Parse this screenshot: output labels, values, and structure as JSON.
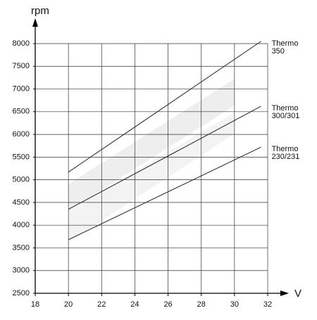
{
  "chart_data": {
    "type": "line",
    "xlabel": "V",
    "ylabel": "rpm",
    "x": [
      20,
      31.6
    ],
    "series": [
      {
        "name": "Thermo 350",
        "color": "#222222",
        "values": [
          5170,
          8050
        ]
      },
      {
        "name": "Thermo 300/301",
        "color": "#222222",
        "values": [
          4350,
          6620
        ]
      },
      {
        "name": "Thermo 230/231",
        "color": "#222222",
        "values": [
          3680,
          5720
        ]
      }
    ],
    "xlim": [
      18,
      32
    ],
    "xticks": [
      18,
      20,
      22,
      24,
      26,
      28,
      30,
      32
    ],
    "ylim": [
      2500,
      8000
    ],
    "yticks": [
      2500,
      3000,
      3500,
      4000,
      4500,
      5000,
      5500,
      6000,
      6500,
      7000,
      7500,
      8000
    ],
    "grid": true
  }
}
